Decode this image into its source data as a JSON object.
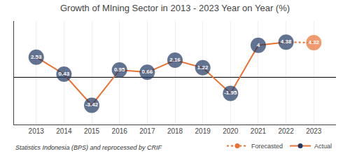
{
  "chart_data": {
    "type": "line",
    "title": "Growth of MIning Sector in 2013 - 2023 Year on Year (%)",
    "subtitle": "Statistics Indonesia (BPS) and reprocessed by CRIF",
    "x": [
      2013,
      2014,
      2015,
      2016,
      2017,
      2018,
      2019,
      2020,
      2021,
      2022,
      2023
    ],
    "xlim": [
      2012.2,
      2023.8
    ],
    "xticks": [
      2013,
      2014,
      2015,
      2016,
      2017,
      2018,
      2019,
      2020,
      2021,
      2022,
      2023
    ],
    "ylim": [
      -5.8,
      7.0
    ],
    "yticks": [],
    "tick_labels": "x",
    "grid": true,
    "legend": "lower right",
    "data_labels": true,
    "series": [
      {
        "name": "Forecasted",
        "color": "#E97132",
        "line_style": "dotted",
        "marker": "circle",
        "values": [
          null,
          null,
          null,
          null,
          null,
          null,
          null,
          null,
          null,
          4.38,
          4.32
        ],
        "colors": [
          null,
          null,
          null,
          null,
          null,
          null,
          null,
          null,
          null,
          null,
          "#E97132"
        ]
      },
      {
        "name": "Actual",
        "color": "#E97132",
        "line_style": "solid",
        "marker": "circle",
        "values": [
          2.53,
          0.43,
          -3.42,
          0.95,
          0.66,
          2.16,
          1.22,
          -1.95,
          4.0,
          4.38,
          null
        ],
        "colors": [
          "#1F3864",
          "#1F3864",
          "#1F3864",
          "#1F3864",
          "#1F3864",
          "#1F3864",
          "#1F3864",
          "#1F3864",
          "#1F3864",
          "#1F3864",
          null
        ]
      }
    ]
  }
}
